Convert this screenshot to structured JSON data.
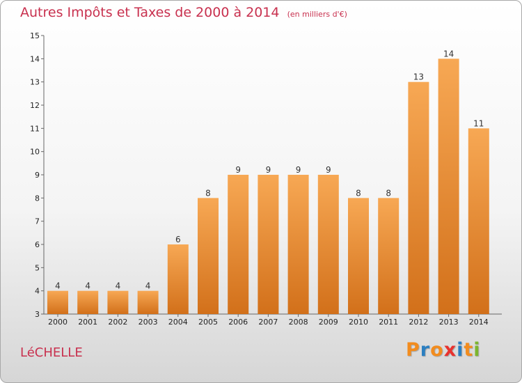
{
  "title": "Autres Impôts et Taxes de 2000 à 2014",
  "unit_label": "(en milliers d'€)",
  "commune": "LéCHELLE",
  "logo": {
    "text": "Proxiti",
    "colors": [
      "#f28c1e",
      "#2b7fc1",
      "#f28c1e",
      "#e8322e",
      "#2b7fc1",
      "#f28c1e",
      "#7cb52e"
    ]
  },
  "chart_data": {
    "type": "bar",
    "categories": [
      "2000",
      "2001",
      "2002",
      "2003",
      "2004",
      "2005",
      "2006",
      "2007",
      "2008",
      "2009",
      "2010",
      "2011",
      "2012",
      "2013",
      "2014"
    ],
    "values": [
      4,
      4,
      4,
      4,
      6,
      8,
      9,
      9,
      9,
      9,
      8,
      8,
      13,
      14,
      11
    ],
    "ylim": [
      3,
      15
    ],
    "yticks": [
      3,
      4,
      5,
      6,
      7,
      8,
      9,
      10,
      11,
      12,
      13,
      14,
      15
    ],
    "grid": false,
    "bar_color_top": "#f7a854",
    "bar_color_bottom": "#d2701a"
  }
}
